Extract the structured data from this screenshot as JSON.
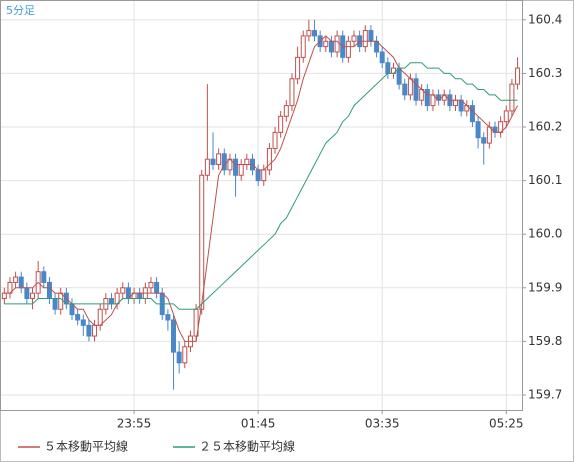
{
  "chart_data": {
    "type": "candlestick",
    "title": "5分足",
    "categories": [
      null,
      null,
      null,
      null,
      null,
      null,
      null,
      null,
      null,
      null,
      null,
      null,
      null,
      null,
      null,
      null,
      null,
      null,
      null,
      null,
      null,
      null,
      null,
      "23:55",
      null,
      null,
      null,
      null,
      null,
      null,
      null,
      null,
      null,
      null,
      null,
      null,
      null,
      null,
      null,
      null,
      null,
      null,
      null,
      null,
      null,
      "01:45",
      null,
      null,
      null,
      null,
      null,
      null,
      null,
      null,
      null,
      null,
      null,
      null,
      null,
      null,
      null,
      null,
      null,
      null,
      null,
      null,
      null,
      "03:35",
      null,
      null,
      null,
      null,
      null,
      null,
      null,
      null,
      null,
      null,
      null,
      null,
      null,
      null,
      null,
      null,
      null,
      null,
      null,
      null,
      null,
      "05:25",
      null,
      null
    ],
    "open": [
      159.88,
      159.89,
      159.91,
      159.92,
      159.9,
      159.88,
      159.89,
      159.93,
      159.91,
      159.88,
      159.86,
      159.89,
      159.87,
      159.85,
      159.84,
      159.83,
      159.81,
      159.83,
      159.86,
      159.88,
      159.87,
      159.89,
      159.9,
      159.88,
      159.89,
      159.88,
      159.9,
      159.91,
      159.89,
      159.85,
      159.84,
      159.78,
      159.76,
      159.79,
      159.81,
      159.86,
      160.11,
      160.14,
      160.13,
      160.15,
      160.12,
      160.14,
      160.11,
      160.13,
      160.14,
      160.12,
      160.1,
      160.12,
      160.16,
      160.19,
      160.22,
      160.24,
      160.29,
      160.33,
      160.37,
      160.38,
      160.37,
      160.35,
      160.36,
      160.34,
      160.37,
      160.33,
      160.36,
      160.37,
      160.35,
      160.38,
      160.36,
      160.34,
      160.32,
      160.3,
      160.31,
      160.28,
      160.26,
      160.29,
      160.25,
      160.27,
      160.24,
      160.26,
      160.25,
      160.26,
      160.24,
      160.25,
      160.23,
      160.24,
      160.21,
      160.18,
      160.17,
      160.2,
      160.19,
      160.21,
      160.23,
      160.28
    ],
    "high": [
      159.9,
      159.92,
      159.93,
      159.93,
      159.91,
      159.9,
      159.95,
      159.94,
      159.92,
      159.89,
      159.9,
      159.9,
      159.88,
      159.86,
      159.85,
      159.84,
      159.84,
      159.87,
      159.89,
      159.89,
      159.9,
      159.91,
      159.91,
      159.9,
      159.9,
      159.91,
      159.92,
      159.92,
      159.9,
      159.86,
      159.85,
      159.8,
      159.8,
      159.82,
      159.87,
      160.12,
      160.28,
      160.19,
      160.16,
      160.16,
      160.15,
      160.15,
      160.14,
      160.15,
      160.15,
      160.13,
      160.13,
      160.17,
      160.2,
      160.23,
      160.25,
      160.3,
      160.35,
      160.38,
      160.4,
      160.4,
      160.38,
      160.37,
      160.37,
      160.38,
      160.38,
      160.37,
      160.38,
      160.38,
      160.39,
      160.39,
      160.37,
      160.35,
      160.33,
      160.32,
      160.32,
      160.29,
      160.3,
      160.3,
      160.28,
      160.28,
      160.27,
      160.27,
      160.27,
      160.27,
      160.26,
      160.26,
      160.25,
      160.25,
      160.22,
      160.19,
      160.21,
      160.21,
      160.22,
      160.24,
      160.29,
      160.33
    ],
    "low": [
      159.87,
      159.88,
      159.9,
      159.89,
      159.87,
      159.86,
      159.88,
      159.9,
      159.87,
      159.85,
      159.85,
      159.86,
      159.84,
      159.83,
      159.81,
      159.8,
      159.8,
      159.82,
      159.85,
      159.86,
      159.86,
      159.88,
      159.87,
      159.87,
      159.87,
      159.87,
      159.89,
      159.88,
      159.84,
      159.82,
      159.71,
      159.74,
      159.75,
      159.78,
      159.8,
      159.85,
      160.1,
      160.12,
      160.12,
      160.11,
      160.11,
      160.07,
      160.1,
      160.12,
      160.11,
      160.09,
      160.09,
      160.11,
      160.15,
      160.18,
      160.21,
      160.23,
      160.28,
      160.32,
      160.36,
      160.36,
      160.34,
      160.34,
      160.33,
      160.33,
      160.32,
      160.32,
      160.35,
      160.34,
      160.34,
      160.35,
      160.33,
      160.31,
      160.29,
      160.29,
      160.27,
      160.25,
      160.25,
      160.24,
      160.24,
      160.23,
      160.23,
      160.24,
      160.24,
      160.23,
      160.23,
      160.22,
      160.22,
      160.2,
      160.16,
      160.13,
      160.16,
      160.18,
      160.18,
      160.2,
      160.22,
      160.27
    ],
    "close": [
      159.89,
      159.91,
      159.92,
      159.9,
      159.88,
      159.89,
      159.93,
      159.91,
      159.88,
      159.86,
      159.89,
      159.87,
      159.85,
      159.84,
      159.83,
      159.81,
      159.83,
      159.86,
      159.88,
      159.87,
      159.89,
      159.9,
      159.88,
      159.89,
      159.88,
      159.9,
      159.91,
      159.89,
      159.85,
      159.84,
      159.78,
      159.76,
      159.79,
      159.81,
      159.86,
      160.11,
      160.14,
      160.13,
      160.15,
      160.12,
      160.14,
      160.11,
      160.13,
      160.14,
      160.12,
      160.1,
      160.12,
      160.16,
      160.19,
      160.22,
      160.24,
      160.29,
      160.33,
      160.37,
      160.38,
      160.37,
      160.35,
      160.36,
      160.34,
      160.37,
      160.33,
      160.36,
      160.37,
      160.35,
      160.38,
      160.36,
      160.34,
      160.32,
      160.3,
      160.31,
      160.28,
      160.26,
      160.29,
      160.25,
      160.27,
      160.24,
      160.26,
      160.25,
      160.26,
      160.24,
      160.25,
      160.23,
      160.24,
      160.21,
      160.18,
      160.17,
      160.2,
      160.19,
      160.21,
      160.23,
      160.28,
      160.31
    ],
    "up_color": "#c0504d",
    "down_color": "#4a86c8",
    "series": [
      {
        "name": "５本移動平均線",
        "color": "#c0504d",
        "values": [
          159.89,
          159.89,
          159.9,
          159.9,
          159.9,
          159.9,
          159.91,
          159.9,
          159.9,
          159.89,
          159.89,
          159.88,
          159.87,
          159.86,
          159.86,
          159.84,
          159.83,
          159.83,
          159.84,
          159.85,
          159.87,
          159.88,
          159.88,
          159.89,
          159.89,
          159.89,
          159.89,
          159.89,
          159.89,
          159.88,
          159.85,
          159.82,
          159.8,
          159.8,
          159.8,
          159.87,
          159.95,
          160.03,
          160.11,
          160.13,
          160.14,
          160.13,
          160.13,
          160.13,
          160.13,
          160.12,
          160.12,
          160.13,
          160.14,
          160.16,
          160.19,
          160.22,
          160.25,
          160.29,
          160.32,
          160.35,
          160.36,
          160.37,
          160.36,
          160.36,
          160.35,
          160.35,
          160.35,
          160.36,
          160.36,
          160.36,
          160.36,
          160.35,
          160.34,
          160.33,
          160.31,
          160.3,
          160.29,
          160.28,
          160.27,
          160.26,
          160.26,
          160.25,
          160.26,
          160.25,
          160.25,
          160.25,
          160.24,
          160.23,
          160.22,
          160.21,
          160.2,
          160.19,
          160.19,
          160.2,
          160.22,
          160.24
        ]
      },
      {
        "name": "２５本移動平均線",
        "color": "#2e9e72",
        "values": [
          159.87,
          159.87,
          159.87,
          159.87,
          159.87,
          159.87,
          159.88,
          159.88,
          159.88,
          159.88,
          159.88,
          159.87,
          159.87,
          159.87,
          159.87,
          159.87,
          159.87,
          159.87,
          159.87,
          159.87,
          159.87,
          159.88,
          159.88,
          159.88,
          159.88,
          159.88,
          159.88,
          159.87,
          159.87,
          159.87,
          159.87,
          159.86,
          159.86,
          159.86,
          159.86,
          159.87,
          159.88,
          159.89,
          159.9,
          159.91,
          159.92,
          159.93,
          159.94,
          159.95,
          159.96,
          159.97,
          159.98,
          159.99,
          160.0,
          160.02,
          160.03,
          160.05,
          160.07,
          160.09,
          160.11,
          160.13,
          160.15,
          160.17,
          160.18,
          160.19,
          160.21,
          160.22,
          160.24,
          160.25,
          160.26,
          160.27,
          160.28,
          160.29,
          160.3,
          160.3,
          160.31,
          160.31,
          160.32,
          160.32,
          160.32,
          160.31,
          160.31,
          160.31,
          160.3,
          160.3,
          160.29,
          160.29,
          160.28,
          160.28,
          160.27,
          160.27,
          160.26,
          160.26,
          160.25,
          160.25,
          160.25,
          160.25
        ]
      }
    ],
    "ylim": [
      159.672,
      160.437
    ],
    "yticks": [
      159.7,
      159.8,
      159.9,
      {
        "value": 160,
        "label": "160.0"
      },
      160.1,
      160.2,
      160.3,
      160.4
    ],
    "grid": true
  }
}
